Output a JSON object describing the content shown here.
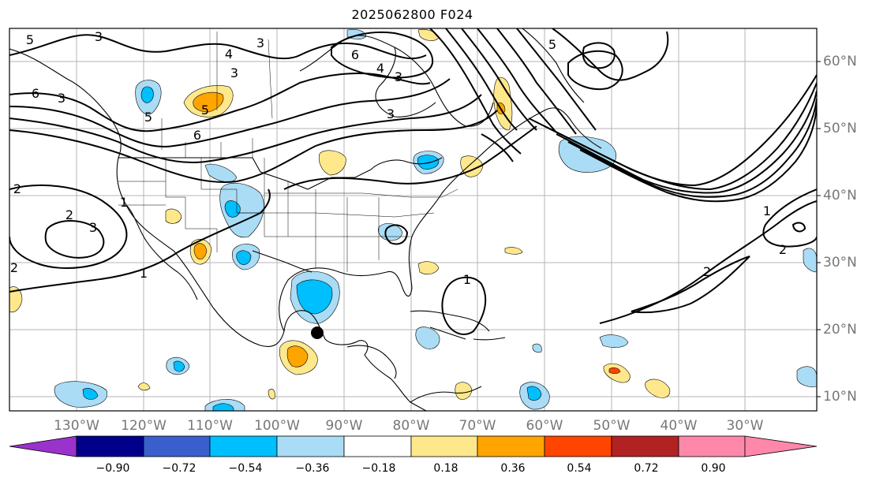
{
  "title": "2025062800 F024",
  "lon_labels": [
    "130°W",
    "120°W",
    "110°W",
    "100°W",
    "90°W",
    "80°W",
    "70°W",
    "60°W",
    "50°W",
    "40°W",
    "30°W"
  ],
  "lat_labels": [
    "60°N",
    "50°N",
    "40°N",
    "30°N",
    "20°N",
    "10°N"
  ],
  "contour_labels": [
    "5",
    "3",
    "3",
    "6",
    "4",
    "3",
    "4",
    "3",
    "5",
    "3",
    "6",
    "3",
    "5",
    "6",
    "5",
    "2",
    "1",
    "2",
    "3",
    "1",
    "1",
    "2",
    "2",
    "1",
    "2"
  ],
  "colorbar": {
    "ticks": [
      "−0.90",
      "−0.72",
      "−0.54",
      "−0.36",
      "−0.18",
      "0.18",
      "0.36",
      "0.54",
      "0.72",
      "0.90"
    ],
    "colors": [
      "#9933cc",
      "#00008b",
      "#3a5fcd",
      "#00bfff",
      "#aadcf5",
      "#ffffff",
      "#ffe88c",
      "#ffa500",
      "#ff4500",
      "#b22222",
      "#ff88aa"
    ]
  },
  "colors": {
    "neg_light": "#aadcf5",
    "neg_mid": "#00bfff",
    "pos_light": "#ffe88c",
    "pos_mid": "#ffa500",
    "pos_strong": "#ff4500"
  }
}
